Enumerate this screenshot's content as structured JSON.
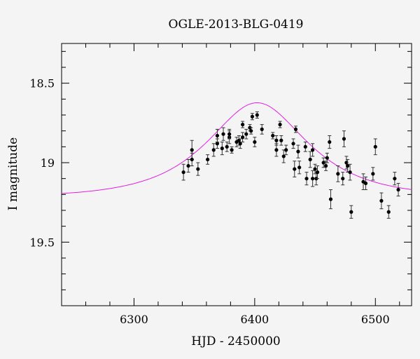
{
  "chart_data": {
    "type": "scatter",
    "title": "OGLE-2013-BLG-0419",
    "xlabel": "HJD - 2450000",
    "ylabel": "I magnitude",
    "xlim": [
      6240,
      6530
    ],
    "ylim": [
      19.9,
      18.25
    ],
    "y_inverted": true,
    "grid": false,
    "xticks": [
      6300,
      6400,
      6500
    ],
    "yticks": [
      18.5,
      19,
      19.5
    ],
    "colors": {
      "points": "#000000",
      "model": "#e020e0",
      "background": "#f4f4f4"
    },
    "series": [
      {
        "points": [
          [
            6341,
            19.06,
            0.05
          ],
          [
            6345,
            19.02,
            0.04
          ],
          [
            6348,
            18.92,
            0.06
          ],
          [
            6348,
            18.98,
            0.04
          ],
          [
            6353,
            19.04,
            0.04
          ],
          [
            6361,
            18.98,
            0.03
          ],
          [
            6366,
            18.92,
            0.04
          ],
          [
            6369,
            18.88,
            0.03
          ],
          [
            6369,
            18.83,
            0.04
          ],
          [
            6373,
            18.91,
            0.04
          ],
          [
            6374,
            18.82,
            0.04
          ],
          [
            6377,
            18.9,
            0.03
          ],
          [
            6379,
            18.84,
            0.04
          ],
          [
            6379,
            18.82,
            0.03
          ],
          [
            6381,
            18.92,
            0.02
          ],
          [
            6385,
            18.87,
            0.03
          ],
          [
            6387,
            18.86,
            0.03
          ],
          [
            6388,
            18.88,
            0.03
          ],
          [
            6390,
            18.84,
            0.03
          ],
          [
            6390,
            18.76,
            0.02
          ],
          [
            6393,
            18.82,
            0.03
          ],
          [
            6396,
            18.78,
            0.02
          ],
          [
            6397,
            18.8,
            0.02
          ],
          [
            6398,
            18.71,
            0.02
          ],
          [
            6400,
            18.87,
            0.03
          ],
          [
            6402,
            18.7,
            0.02
          ],
          [
            6406,
            18.79,
            0.03
          ],
          [
            6415,
            18.83,
            0.02
          ],
          [
            6418,
            18.86,
            0.03
          ],
          [
            6418,
            18.92,
            0.04
          ],
          [
            6421,
            18.76,
            0.02
          ],
          [
            6422,
            18.86,
            0.03
          ],
          [
            6424,
            18.96,
            0.04
          ],
          [
            6426,
            18.92,
            0.03
          ],
          [
            6432,
            18.88,
            0.03
          ],
          [
            6433,
            19.04,
            0.05
          ],
          [
            6434,
            18.79,
            0.02
          ],
          [
            6436,
            18.93,
            0.04
          ],
          [
            6437,
            19.03,
            0.04
          ],
          [
            6442,
            18.9,
            0.03
          ],
          [
            6443,
            19.1,
            0.04
          ],
          [
            6446,
            18.98,
            0.05
          ],
          [
            6448,
            18.92,
            0.04
          ],
          [
            6448,
            19.1,
            0.05
          ],
          [
            6450,
            19.04,
            0.03
          ],
          [
            6451,
            19.1,
            0.04
          ],
          [
            6452,
            19.06,
            0.04
          ],
          [
            6457,
            19.0,
            0.03
          ],
          [
            6459,
            19.02,
            0.03
          ],
          [
            6460,
            18.97,
            0.03
          ],
          [
            6462,
            18.87,
            0.04
          ],
          [
            6463,
            19.23,
            0.06
          ],
          [
            6469,
            19.07,
            0.05
          ],
          [
            6473,
            19.1,
            0.04
          ],
          [
            6474,
            18.85,
            0.05
          ],
          [
            6476,
            19.0,
            0.04
          ],
          [
            6477,
            19.02,
            0.04
          ],
          [
            6479,
            19.06,
            0.05
          ],
          [
            6480,
            19.31,
            0.04
          ],
          [
            6490,
            19.12,
            0.05
          ],
          [
            6492,
            19.13,
            0.04
          ],
          [
            6498,
            19.07,
            0.04
          ],
          [
            6500,
            18.9,
            0.05
          ],
          [
            6505,
            19.24,
            0.05
          ],
          [
            6511,
            19.31,
            0.04
          ],
          [
            6516,
            19.1,
            0.04
          ],
          [
            6519,
            19.17,
            0.04
          ]
        ],
        "style": "points-with-y-errorbars"
      },
      {
        "model": "microlensing-fit",
        "t0": 6402,
        "tE": 62,
        "u0": 0.67,
        "baseline_mag": 19.22,
        "x_range": [
          6240,
          6530
        ],
        "style": "line"
      }
    ]
  }
}
